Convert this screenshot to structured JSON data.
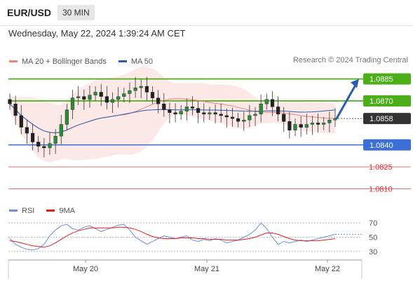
{
  "header": {
    "symbol": "EUR/USD",
    "timeframe": "30 MIN"
  },
  "datetime": "Wednesday, May 22, 2024 1:39:24 AM CET",
  "legend": {
    "ma20_label": "MA 20 + Bollinger Bands",
    "ma50_label": "MA 50",
    "ma20_color": "#f08080",
    "ma50_color": "#2a5caa",
    "credit": "Research © 2024 Trading Central"
  },
  "rsi_legend": {
    "rsi_label": "RSI",
    "ma9_label": "9MA",
    "rsi_color": "#6a8fd6",
    "ma9_color": "#e02020"
  },
  "chart_data": [
    {
      "type": "candlestick",
      "x_tick_labels": [
        "May 20",
        "May 21",
        "May 22"
      ],
      "ylim": [
        1.0805,
        1.0892
      ],
      "last_price": 1.0858,
      "levels": [
        {
          "value": 1.0885,
          "label": "1.0885",
          "kind": "resistance",
          "color": "#4caf1a"
        },
        {
          "value": 1.087,
          "label": "1.0870",
          "kind": "resistance",
          "color": "#4caf1a"
        },
        {
          "value": 1.0858,
          "label": "1.0858",
          "kind": "last",
          "color": "#333333"
        },
        {
          "value": 1.084,
          "label": "1.0840",
          "kind": "support",
          "color": "#3b6fd6"
        },
        {
          "value": 1.0825,
          "label": "1.0825",
          "kind": "target",
          "color": "#e03030"
        },
        {
          "value": 1.081,
          "label": "1.0810",
          "kind": "target",
          "color": "#e03030"
        }
      ],
      "arrow": {
        "from": 1.0858,
        "to": 1.0885,
        "color": "#2a5caa"
      },
      "closes": [
        1.0868,
        1.086,
        1.0852,
        1.0848,
        1.0842,
        1.0839,
        1.0838,
        1.0841,
        1.0846,
        1.0854,
        1.0864,
        1.0872,
        1.0873,
        1.0871,
        1.0874,
        1.0876,
        1.0873,
        1.0869,
        1.0871,
        1.0873,
        1.0875,
        1.0877,
        1.0879,
        1.088,
        1.0876,
        1.0872,
        1.0868,
        1.0864,
        1.0862,
        1.0861,
        1.0863,
        1.0866,
        1.0865,
        1.0862,
        1.0861,
        1.0862,
        1.0861,
        1.086,
        1.0859,
        1.0858,
        1.0856,
        1.0857,
        1.086,
        1.0861,
        1.0868,
        1.0871,
        1.0866,
        1.0861,
        1.0856,
        1.085,
        1.0854,
        1.0852,
        1.0854,
        1.0855,
        1.0854,
        1.0855,
        1.0857,
        1.0858
      ]
    },
    {
      "type": "line",
      "title": "RSI",
      "y_tick_labels": [
        "70",
        "50",
        "30"
      ],
      "ylim": [
        22,
        78
      ],
      "series": [
        {
          "name": "RSI",
          "values": [
            48,
            40,
            36,
            33,
            32,
            34,
            40,
            52,
            60,
            66,
            68,
            62,
            60,
            64,
            66,
            62,
            58,
            61,
            64,
            67,
            68,
            60,
            50,
            45,
            40,
            44,
            48,
            52,
            50,
            48,
            50,
            52,
            46,
            44,
            47,
            45,
            48,
            46,
            42,
            44,
            46,
            50,
            54,
            60,
            70,
            62,
            50,
            40,
            44,
            42,
            44,
            46,
            44,
            46,
            48,
            50,
            52,
            54
          ]
        },
        {
          "name": "9MA",
          "values": [
            45,
            44,
            42,
            40,
            38,
            37,
            36,
            38,
            42,
            47,
            52,
            56,
            59,
            61,
            63,
            63,
            63,
            63,
            63,
            64,
            64,
            63,
            61,
            58,
            54,
            51,
            49,
            48,
            48,
            48,
            49,
            49,
            49,
            48,
            48,
            47,
            47,
            47,
            46,
            46,
            46,
            47,
            48,
            50,
            53,
            56,
            56,
            54,
            51,
            48,
            46,
            45,
            45,
            45,
            45,
            46,
            47,
            48
          ]
        }
      ]
    }
  ]
}
